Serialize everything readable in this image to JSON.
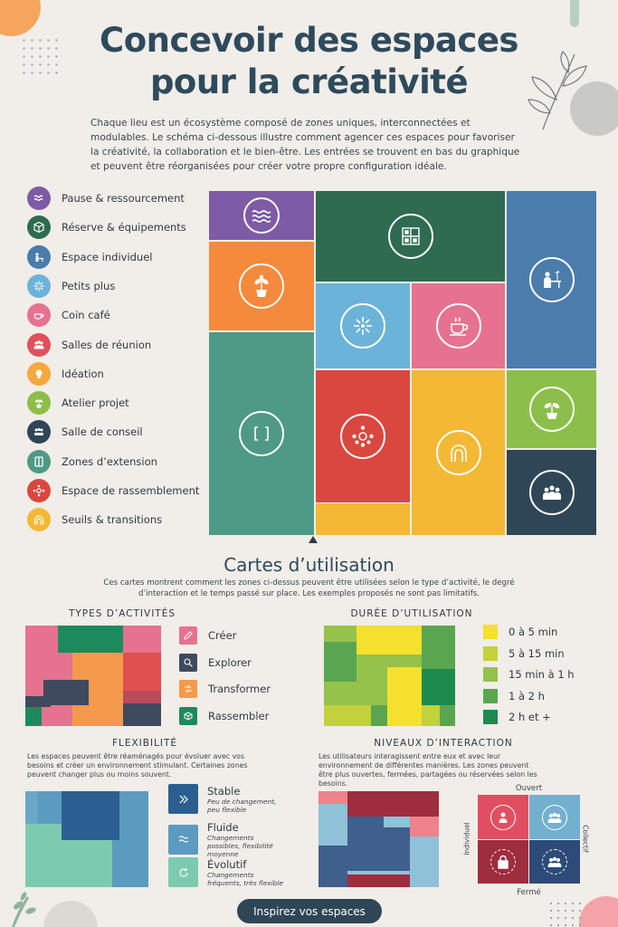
{
  "title_line1": "Concevoir des espaces",
  "title_line2": "pour la créativité",
  "intro": "Chaque lieu est un écosystème composé de zones uniques, interconnectées et modulables. Le schéma ci-dessous illustre comment agencer ces espaces pour favoriser la créativité, la collaboration et le bien-être. Les entrées se trouvent en bas du graphique et peuvent être réorganisées pour créer votre propre configuration idéale.",
  "legend": [
    {
      "label": "Pause & ressourcement",
      "color": "#7d5ba6",
      "icon": "waves-icon"
    },
    {
      "label": "Réserve & équipements",
      "color": "#2f6b50",
      "icon": "box-icon"
    },
    {
      "label": "Espace individuel",
      "color": "#4a7cac",
      "icon": "desk-icon"
    },
    {
      "label": "Petits plus",
      "color": "#6bb3d9",
      "icon": "spark-icon"
    },
    {
      "label": "Coin café",
      "color": "#e6728f",
      "icon": "cup-icon"
    },
    {
      "label": "Salles de réunion",
      "color": "#e0505a",
      "icon": "group-icon"
    },
    {
      "label": "Idéation",
      "color": "#f5a83c",
      "icon": "bulb-icon"
    },
    {
      "label": "Atelier projet",
      "color": "#8cbf4a",
      "icon": "plant-icon"
    },
    {
      "label": "Salle de conseil",
      "color": "#2e4656",
      "icon": "board-icon"
    },
    {
      "label": "Zones d’extension",
      "color": "#4e9a86",
      "icon": "bracket-icon"
    },
    {
      "label": "Espace de rassemblement",
      "color": "#d9473e",
      "icon": "gather-icon"
    },
    {
      "label": "Seuils & transitions",
      "color": "#f3b935",
      "icon": "arch-icon"
    }
  ],
  "usage_title": "Cartes d’utilisation",
  "usage_text": "Ces cartes montrent comment les zones ci-dessus peuvent être utilisées selon le type d’activité, le degré d’interaction et le temps passé sur place. Les exemples proposés ne sont pas limitatifs.",
  "types_title": "TYPES D’ACTIVITÉS",
  "types_keys": [
    {
      "label": "Créer",
      "color": "#e6728f"
    },
    {
      "label": "Explorer",
      "color": "#3f4a5e"
    },
    {
      "label": "Transformer",
      "color": "#f59a4c"
    },
    {
      "label": "Rassembler",
      "color": "#1d8a5e"
    }
  ],
  "duration_title": "DURÉE D’UTILISATION",
  "duration_keys": [
    {
      "label": "0 à 5 min",
      "color": "#f5e02d"
    },
    {
      "label": "5 à 15 min",
      "color": "#c3d13b"
    },
    {
      "label": "15 min à 1 h",
      "color": "#94c24a"
    },
    {
      "label": "1 à 2 h",
      "color": "#5aa650"
    },
    {
      "label": "2 h et +",
      "color": "#1d8a4e"
    }
  ],
  "flex_title": "FLEXIBILITÉ",
  "flex_text": "Les espaces peuvent être réaménagés pour évoluer avec vos besoins et créer un environnement stimulant. Certaines zones peuvent changer plus ou moins souvent.",
  "flex_keys": [
    {
      "label": "Stable",
      "note": "Peu de changement, peu flexible",
      "color": "#2b5f91"
    },
    {
      "label": "Fluide",
      "note": "Changements possibles, flexibilité moyenne",
      "color": "#5b9bbf"
    },
    {
      "label": "Évolutif",
      "note": "Changements fréquents, très flexible",
      "color": "#7ccbb0"
    }
  ],
  "inter_title": "NIVEAUX D’INTERACTION",
  "inter_text": "Les utilisateurs interagissent entre eux et avec leur environnement de différentes manières. Les zones peuvent être plus ouvertes, fermées, partagées ou réservées selon les besoins.",
  "inter_labels": {
    "top": "Ouvert",
    "bottom": "Fermé",
    "left": "Individuel",
    "right": "Collectif"
  },
  "cta": "Inspirez vos espaces"
}
